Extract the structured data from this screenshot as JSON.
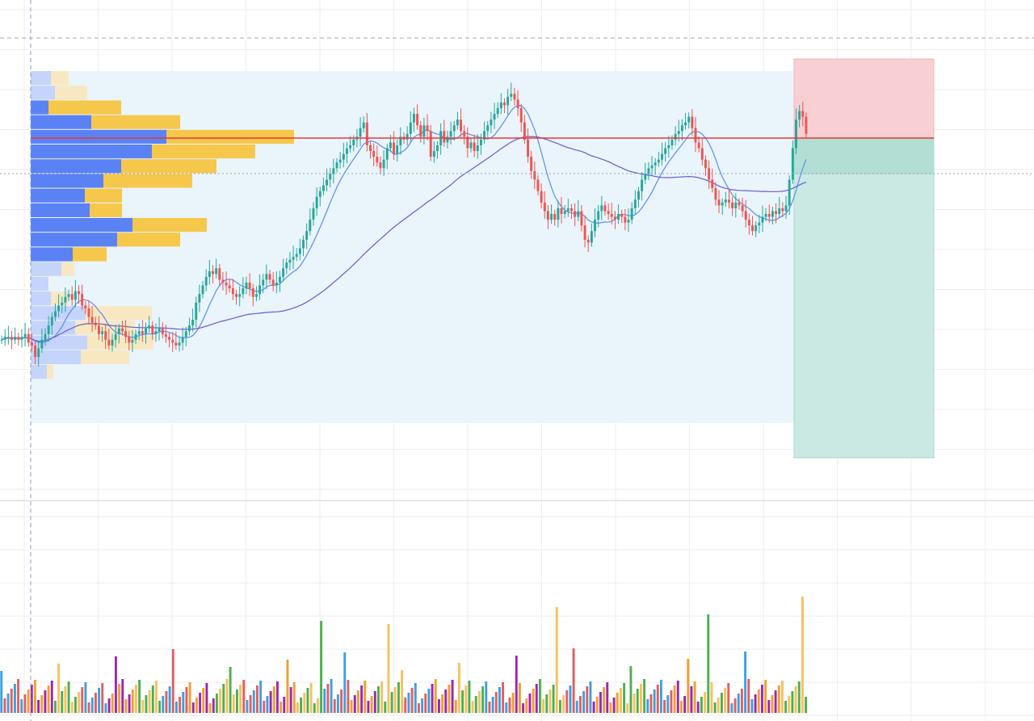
{
  "chart_data": {
    "type": "candlestick",
    "title": "",
    "xlabel": "",
    "ylabel": "",
    "x_label_text": "",
    "y_label_text": "",
    "grid": true,
    "price_range_units": [
      0,
      100
    ],
    "candles_close": [
      28,
      29,
      29,
      28,
      29,
      28,
      29,
      30,
      27,
      26,
      22,
      25,
      28,
      30,
      33,
      36,
      38,
      40,
      41,
      43,
      44,
      42,
      45,
      44,
      40,
      39,
      36,
      34,
      33,
      30,
      31,
      28,
      26,
      28,
      30,
      32,
      31,
      29,
      27,
      28,
      30,
      31,
      30,
      32,
      33,
      30,
      31,
      32,
      30,
      29,
      28,
      27,
      26,
      27,
      29,
      31,
      33,
      35,
      41,
      44,
      47,
      50,
      52,
      51,
      53,
      49,
      48,
      47,
      46,
      44,
      43,
      44,
      46,
      48,
      46,
      43,
      44,
      47,
      49,
      51,
      49,
      47,
      48,
      50,
      53,
      55,
      56,
      57,
      58,
      60,
      63,
      66,
      70,
      74,
      78,
      80,
      82,
      84,
      86,
      88,
      90,
      91,
      93,
      95,
      96,
      98,
      99,
      102,
      104,
      96,
      94,
      92,
      90,
      88,
      91,
      95,
      97,
      93,
      96,
      99,
      98,
      100,
      104,
      107,
      103,
      99,
      103,
      101,
      92,
      94,
      96,
      101,
      97,
      99,
      101,
      103,
      105,
      101,
      99,
      95,
      97,
      94,
      96,
      98,
      101,
      103,
      105,
      107,
      109,
      111,
      110,
      113,
      114,
      112,
      109,
      104,
      98,
      92,
      87,
      84,
      80,
      76,
      73,
      70,
      72,
      70,
      74,
      72,
      73,
      74,
      73,
      71,
      73,
      68,
      63,
      62,
      66,
      70,
      73,
      75,
      73,
      72,
      71,
      70,
      72,
      71,
      69,
      70,
      74,
      77,
      80,
      84,
      86,
      88,
      89,
      90,
      91,
      93,
      95,
      96,
      98,
      100,
      101,
      103,
      104,
      106,
      102,
      97,
      95,
      91,
      88,
      84,
      81,
      77,
      75,
      76,
      77,
      76,
      74,
      76,
      75,
      73,
      70,
      68,
      66,
      68,
      69,
      71,
      72,
      71,
      73,
      72,
      74,
      73,
      75,
      84,
      95,
      105,
      108,
      106,
      100
    ],
    "poc_line_level": 104,
    "sma_fast_label": "",
    "sma_slow_label": "",
    "volume_profile_note": "",
    "volume_bars_count": 240,
    "position_box": {
      "stop_zone_color": "#f8d0d4",
      "target_zone_color": "#c9e9e2",
      "entry_level": 104
    },
    "colors": {
      "up_candle": "#26a69a",
      "down_candle": "#ef5350",
      "sma_fast": "#5b8def",
      "sma_slow": "#6a5acd",
      "poc_line": "#e53935",
      "profile_up": "#5b82f5",
      "profile_down": "#f5c84c",
      "profile_up_faded": "#c5d4fb",
      "profile_down_faded": "#f7e8c2",
      "range_fill": "#eaf4fb",
      "grid": "#eeeeee",
      "crosshair": "#8a9bb5"
    }
  }
}
